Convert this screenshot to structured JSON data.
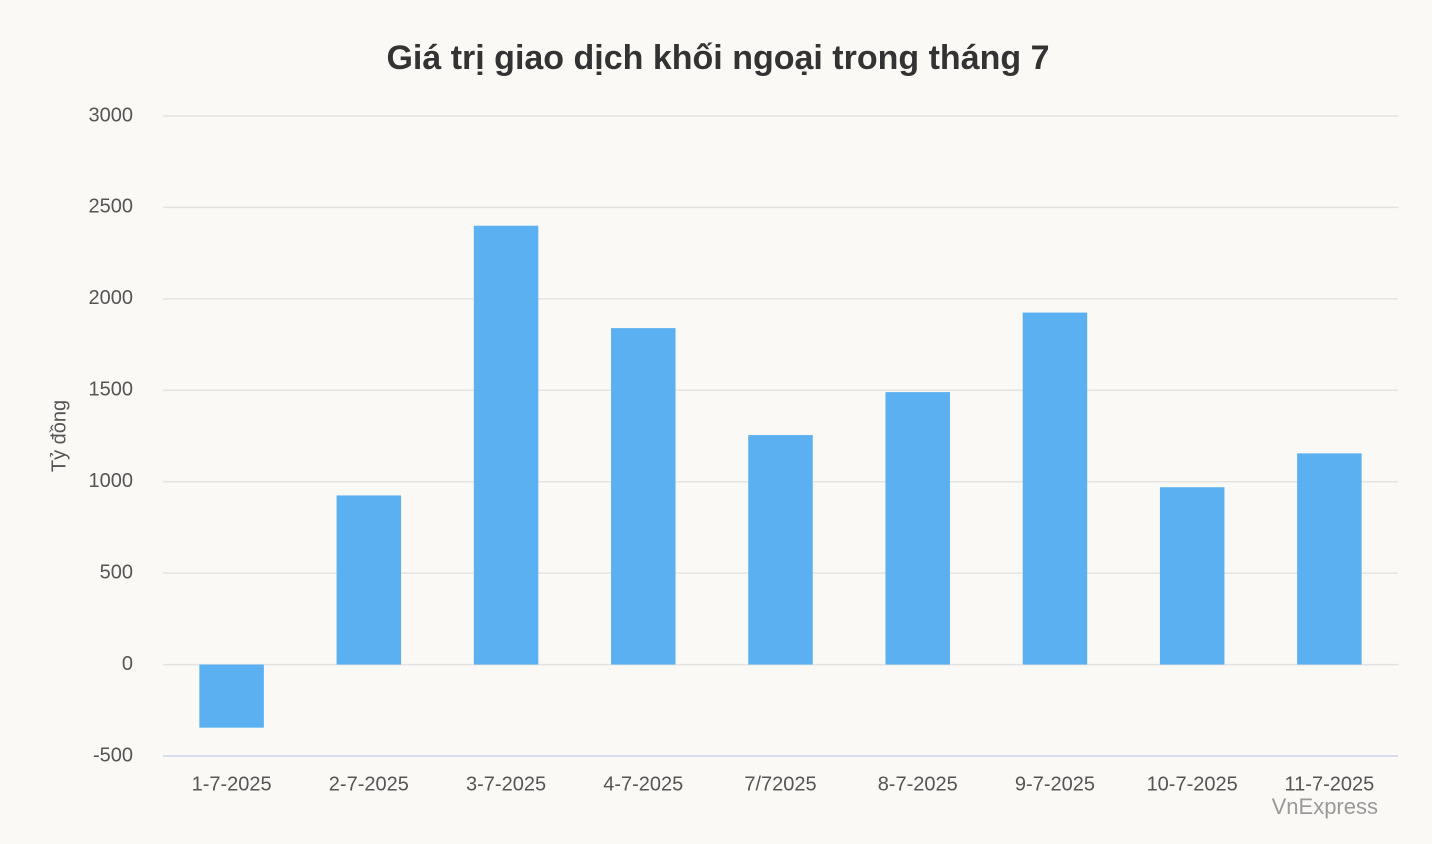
{
  "chart_data": {
    "type": "bar",
    "title": "Giá trị giao dịch khối ngoại trong tháng 7",
    "y_label": "Tỷ đồng",
    "credit": "VnExpress",
    "categories": [
      "1-7-2025",
      "2-7-2025",
      "3-7-2025",
      "4-7-2025",
      "7/72025",
      "8-7-2025",
      "9-7-2025",
      "10-7-2025",
      "11-7-2025"
    ],
    "values": [
      -345,
      925,
      2400,
      1840,
      1255,
      1490,
      1925,
      970,
      1155
    ],
    "color": "#5ab0f0",
    "ylim": [
      -500,
      3000
    ],
    "yticks": [
      -500,
      0,
      500,
      1000,
      1500,
      2000,
      2500,
      3000
    ],
    "grid": true
  }
}
